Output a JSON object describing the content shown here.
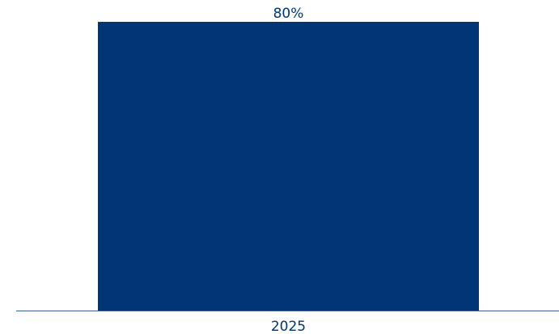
{
  "chart_data": {
    "type": "bar",
    "categories": [
      "2025"
    ],
    "values": [
      80
    ],
    "data_labels": [
      "80%"
    ],
    "ylim": [
      0,
      80
    ],
    "grid": false,
    "legend": "none",
    "colors": {
      "bar": "#003673",
      "text": "#003673",
      "axis": "#3a5f8f"
    }
  }
}
